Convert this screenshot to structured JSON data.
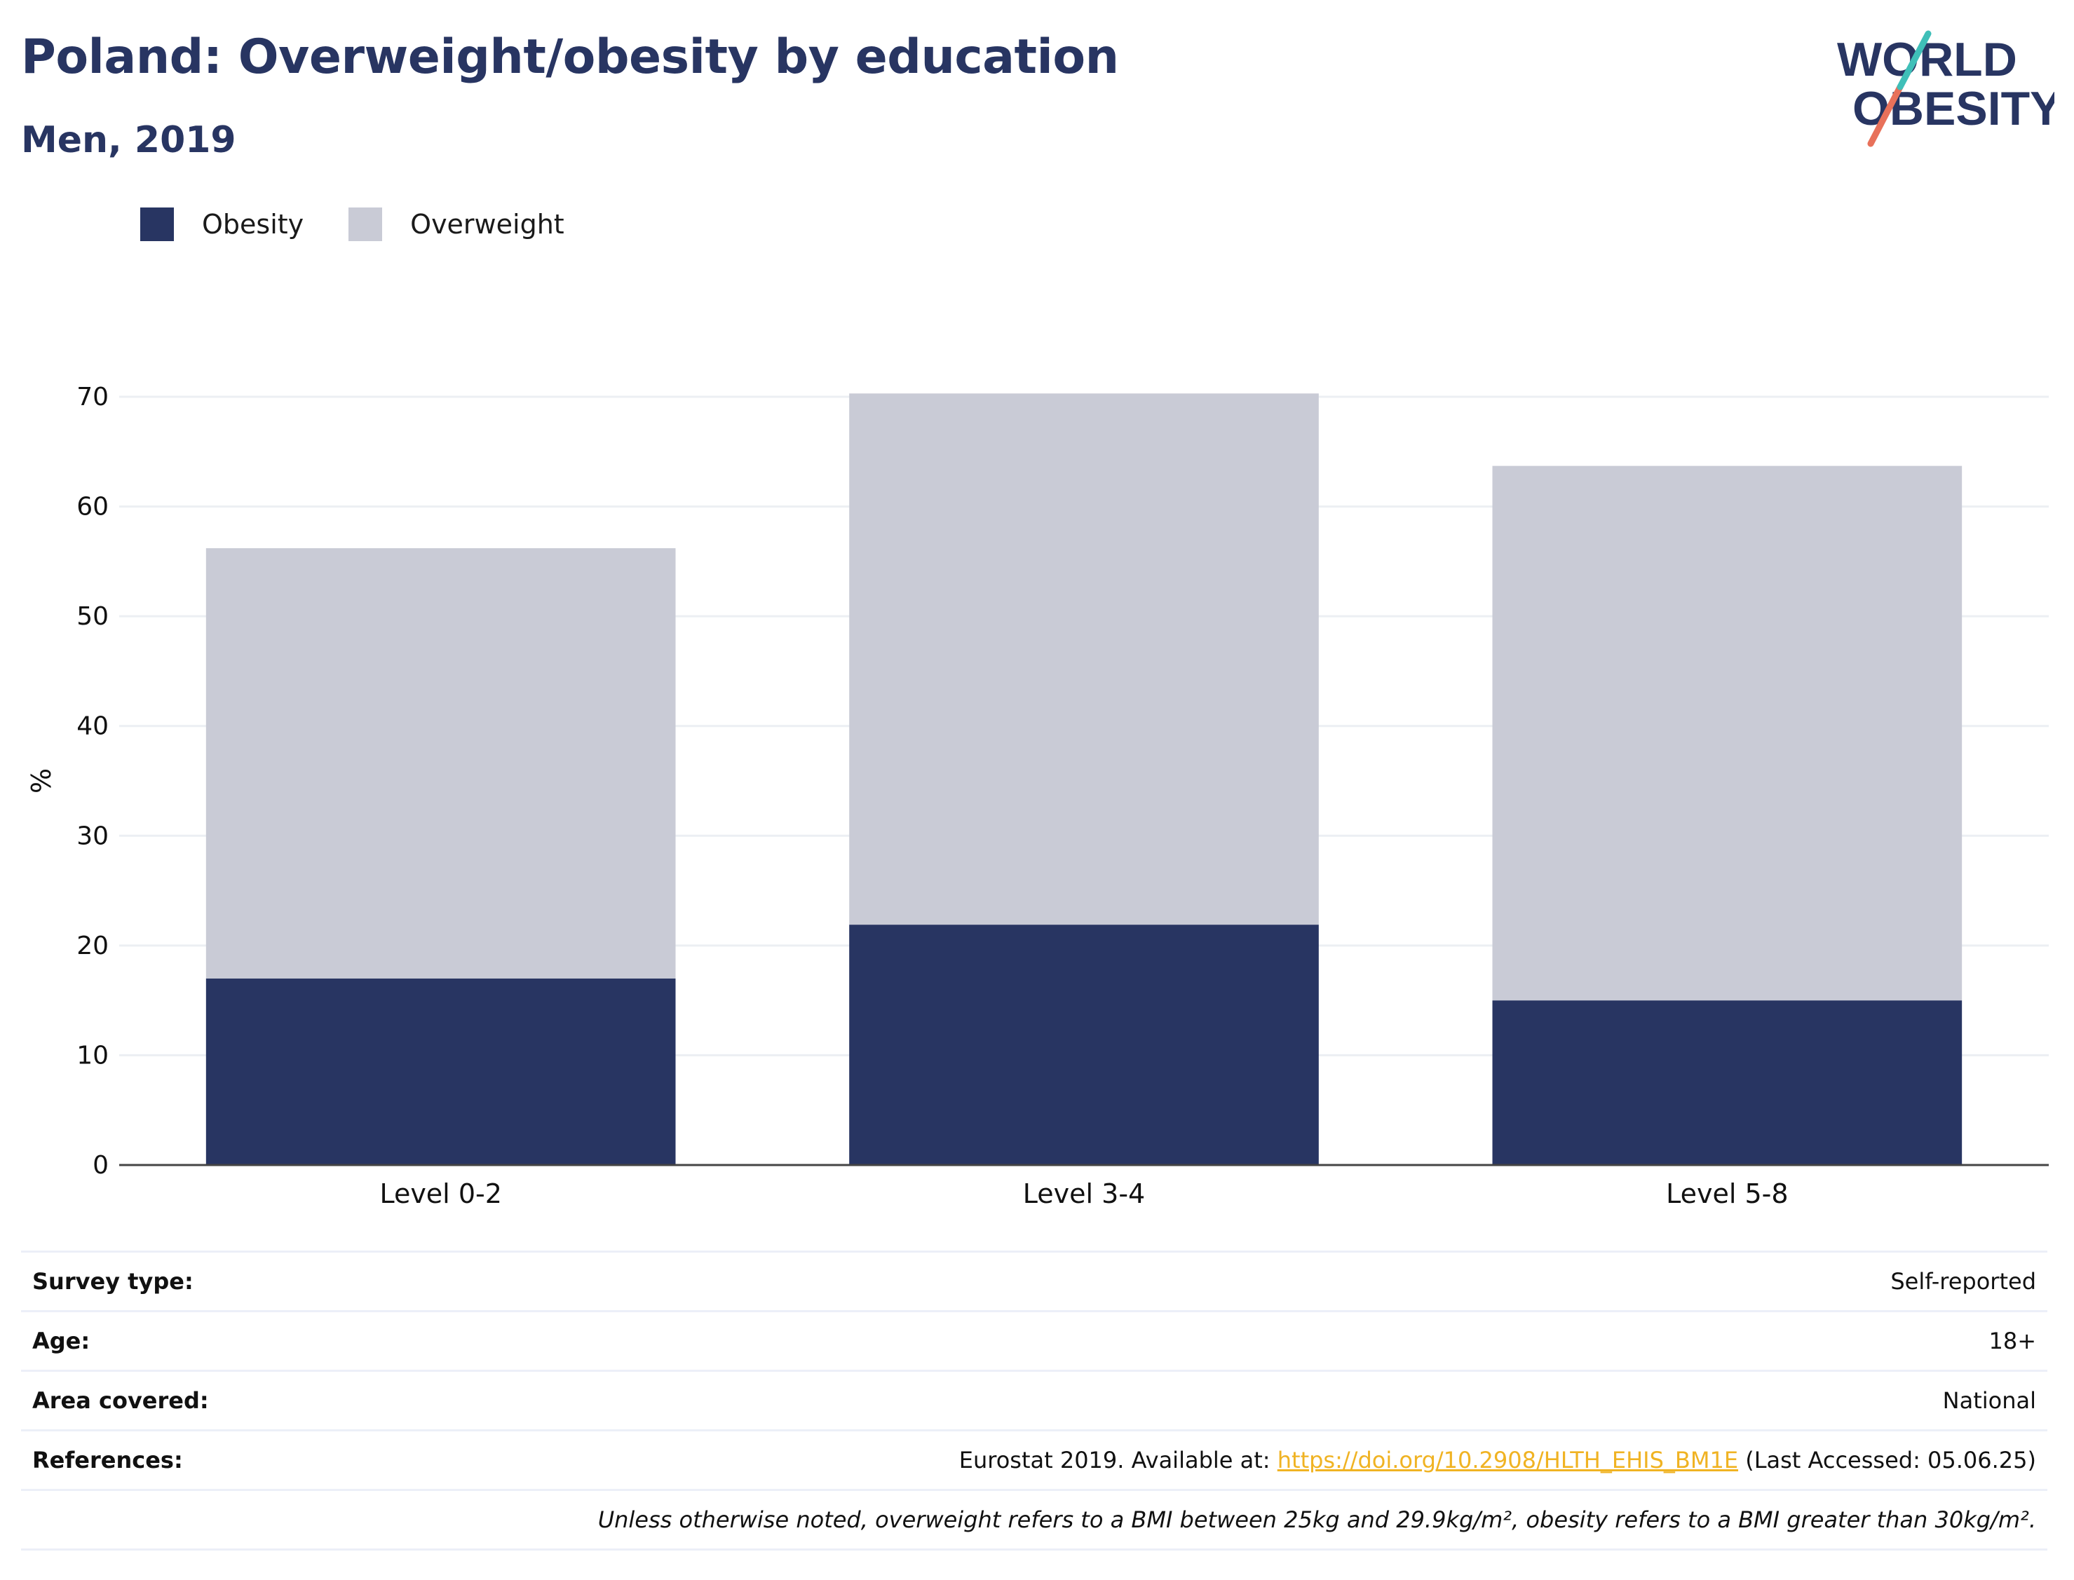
{
  "header": {
    "title": "Poland: Overweight/obesity by education",
    "subtitle": "Men, 2019",
    "logo_line1": "WORLD",
    "logo_line2": "OBESITY"
  },
  "legend": {
    "items": [
      {
        "label": "Obesity",
        "color": "#283562"
      },
      {
        "label": "Overweight",
        "color": "#c9cbd6"
      }
    ]
  },
  "chart_data": {
    "type": "bar",
    "stacked": true,
    "categories": [
      "Level 0-2",
      "Level 3-4",
      "Level 5-8"
    ],
    "series": [
      {
        "name": "Obesity",
        "color": "#283562",
        "values": [
          17.0,
          21.9,
          15.0
        ]
      },
      {
        "name": "Overweight",
        "color": "#c9cbd6",
        "values": [
          39.2,
          48.4,
          48.7
        ]
      }
    ],
    "ylabel": "%",
    "ylim": [
      0,
      70
    ],
    "yticks": [
      0,
      10,
      20,
      30,
      40,
      50,
      60,
      70
    ],
    "grid": true,
    "legend_position": "top-left"
  },
  "meta": {
    "rows": [
      {
        "key": "Survey type:",
        "value": "Self-reported"
      },
      {
        "key": "Age:",
        "value": "18+"
      },
      {
        "key": "Area covered:",
        "value": "National"
      }
    ],
    "references": {
      "key": "References:",
      "prefix": "Eurostat 2019. Available at: ",
      "link": "https://doi.org/10.2908/HLTH_EHIS_BM1E",
      "suffix": " (Last Accessed: 05.06.25)"
    },
    "note": "Unless otherwise noted, overweight refers to a BMI between 25kg and 29.9kg/m², obesity refers to a BMI greater than 30kg/m²."
  }
}
